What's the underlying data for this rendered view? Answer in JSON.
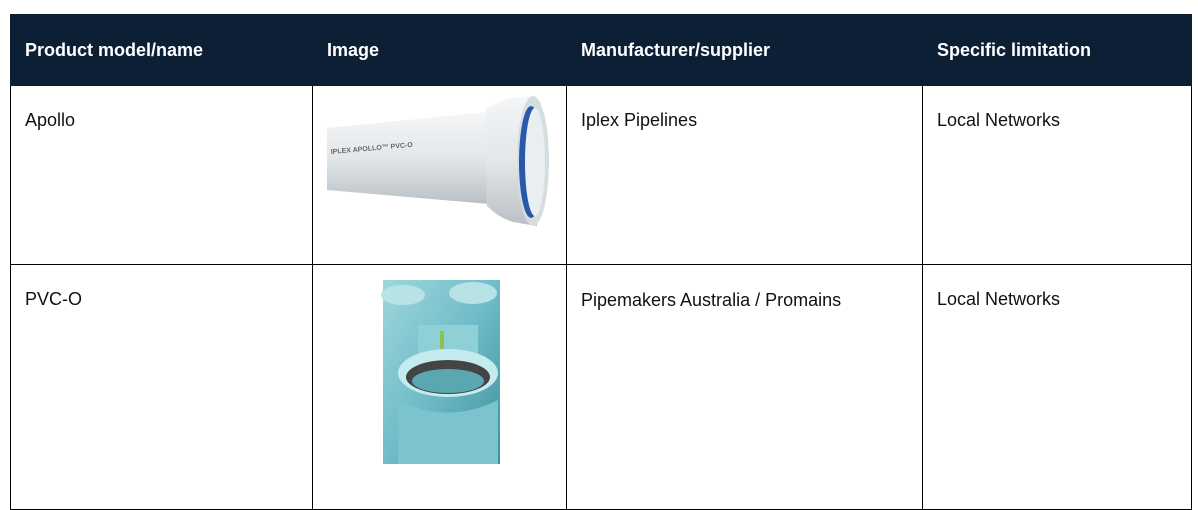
{
  "table": {
    "header": [
      "Product model/name",
      "Image",
      "Manufacturer/supplier",
      "Specific limitation"
    ],
    "rows": [
      {
        "name": "Apollo",
        "image_text": "IPLEX APOLLO™ PVC-O",
        "manufacturer": "Iplex Pipelines",
        "limitation": "Local Networks"
      },
      {
        "name": "PVC-O",
        "manufacturer": "Pipemakers Australia / Promains",
        "limitation": "Local Networks"
      }
    ]
  }
}
